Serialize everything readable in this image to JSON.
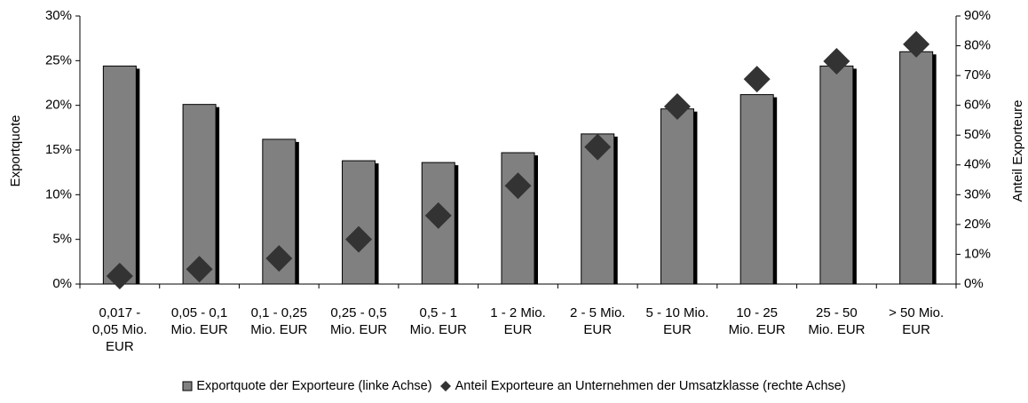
{
  "chart_data": {
    "type": "bar",
    "categories": [
      "0,017 - 0,05 Mio. EUR",
      "0,05 - 0,1 Mio. EUR",
      "0,1 - 0,25 Mio. EUR",
      "0,25 - 0,5 Mio. EUR",
      "0,5 - 1 Mio. EUR",
      "1 - 2 Mio. EUR",
      "2 - 5 Mio. EUR",
      "5 - 10 Mio. EUR",
      "10 - 25 Mio. EUR",
      "25 - 50 Mio. EUR",
      "> 50 Mio. EUR"
    ],
    "series": [
      {
        "name": "Exportquote der Exporteure (linke Achse)",
        "type": "bar",
        "color": "#808080",
        "values": [
          24.4,
          20.1,
          16.2,
          13.8,
          13.6,
          14.7,
          16.8,
          19.6,
          21.2,
          24.4,
          26.0
        ]
      },
      {
        "name": "Anteil Exporteure an Unternehmen der Umsatzklasse (rechte Achse)",
        "type": "scatter",
        "axis": "y2",
        "color": "#333333",
        "values": [
          2.7,
          5.0,
          8.6,
          15.0,
          23.0,
          33.0,
          46.0,
          59.6,
          68.8,
          74.8,
          80.5
        ]
      }
    ],
    "ylabel": "Exportquote",
    "y2label": "Anteil Exporteure",
    "ylim": [
      0,
      30
    ],
    "yticks": [
      {
        "value": 0,
        "label": "0%"
      },
      {
        "value": 5,
        "label": "5%"
      },
      {
        "value": 10,
        "label": "10%"
      },
      {
        "value": 15,
        "label": "15%"
      },
      {
        "value": 20,
        "label": "20%"
      },
      {
        "value": 25,
        "label": "25%"
      },
      {
        "value": 30,
        "label": "30%"
      }
    ],
    "y2lim": [
      0,
      90
    ],
    "y2ticks": [
      {
        "value": 0,
        "label": "0%"
      },
      {
        "value": 10,
        "label": "10%"
      },
      {
        "value": 20,
        "label": "20%"
      },
      {
        "value": 30,
        "label": "30%"
      },
      {
        "value": 40,
        "label": "40%"
      },
      {
        "value": 50,
        "label": "50%"
      },
      {
        "value": 60,
        "label": "60%"
      },
      {
        "value": 70,
        "label": "70%"
      },
      {
        "value": 80,
        "label": "80%"
      },
      {
        "value": 90,
        "label": "90%"
      }
    ],
    "grid": false,
    "legend": "bottom"
  }
}
